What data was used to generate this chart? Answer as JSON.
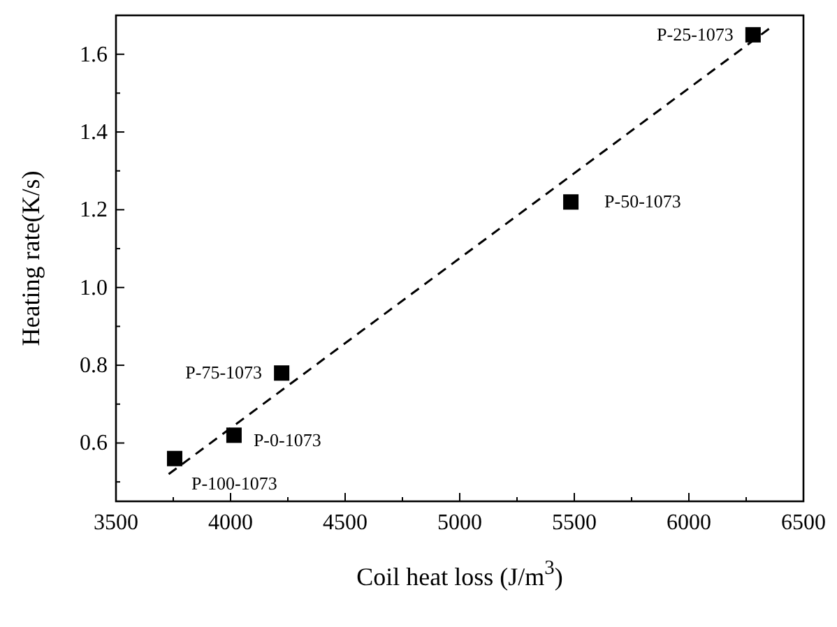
{
  "chart_data": {
    "type": "scatter",
    "xlabel": "Coil heat loss (J/m$^{3}$)",
    "ylabel": "Heating rate(K/s)",
    "xlim": [
      3500,
      6500
    ],
    "ylim": [
      0.45,
      1.7
    ],
    "xticks": [
      3500,
      {
        "value": 3750,
        "label": null
      },
      4000,
      {
        "value": 4250,
        "label": null
      },
      4500,
      {
        "value": 4750,
        "label": null
      },
      5000,
      {
        "value": 5250,
        "label": null
      },
      5500,
      {
        "value": 5750,
        "label": null
      },
      6000,
      {
        "value": 6250,
        "label": null
      },
      6500
    ],
    "yticks": [
      {
        "value": 0.5,
        "label": null
      },
      {
        "value": 0.6,
        "label": "0.6"
      },
      {
        "value": 0.7,
        "label": null
      },
      {
        "value": 0.8,
        "label": "0.8"
      },
      {
        "value": 0.9,
        "label": null
      },
      {
        "value": 1.0,
        "label": "1.0"
      },
      {
        "value": 1.1,
        "label": null
      },
      {
        "value": 1.2,
        "label": "1.2"
      },
      {
        "value": 1.3,
        "label": null
      },
      {
        "value": 1.4,
        "label": "1.4"
      },
      {
        "value": 1.5,
        "label": null
      },
      {
        "value": 1.6,
        "label": "1.6"
      }
    ],
    "grid": false,
    "series": [
      {
        "marker": "square",
        "color": "#000000",
        "x": [
          3756,
          4015,
          4223,
          5485,
          6280
        ],
        "values": [
          0.56,
          0.62,
          0.78,
          1.22,
          1.65
        ]
      },
      {
        "type": "line",
        "marker": "none",
        "line_style": "dashed",
        "color": "#000000",
        "x": [
          3730,
          6360
        ],
        "values": [
          0.52,
          1.67
        ]
      }
    ],
    "annotations": [
      {
        "text": "P-100-1073",
        "x": 3756,
        "y": 0.56
      },
      {
        "text": "P-0-1073",
        "x": 4015,
        "y": 0.62
      },
      {
        "text": "P-75-1073",
        "x": 4223,
        "y": 0.78
      },
      {
        "text": "P-50-1073",
        "x": 5485,
        "y": 1.22
      },
      {
        "text": "P-25-1073",
        "x": 6280,
        "y": 1.65
      }
    ]
  }
}
